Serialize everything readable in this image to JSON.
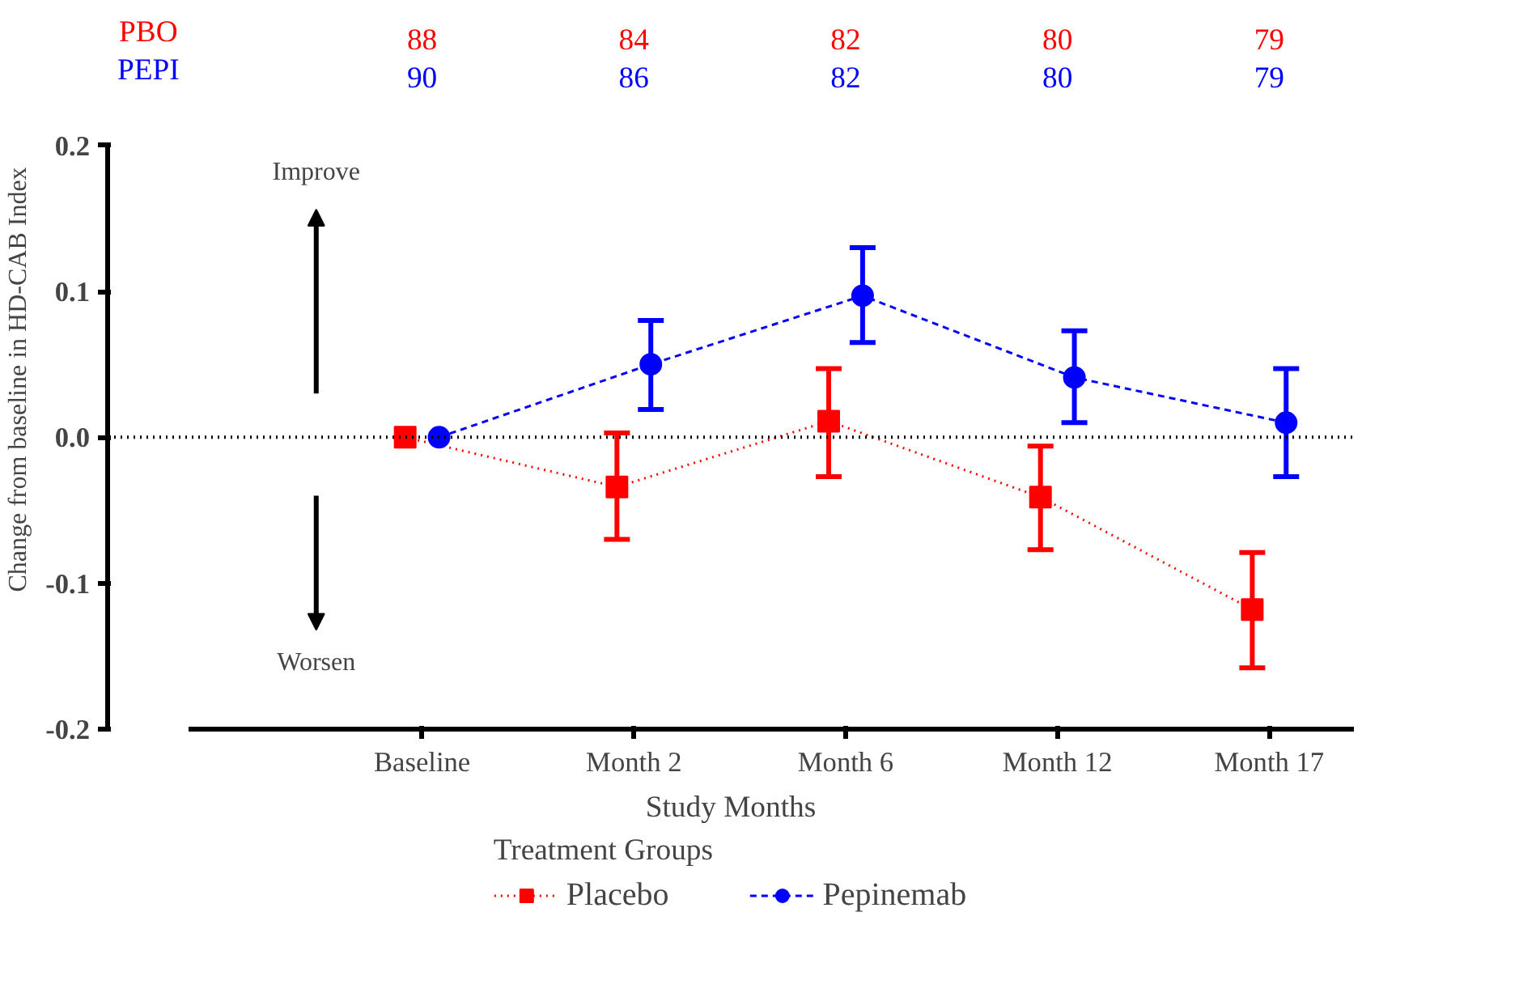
{
  "chart_data": {
    "type": "line",
    "xlabel": "Study Months",
    "ylabel": "Change from baseline in  HD-CAB  Index",
    "legend_title": "Treatment Groups",
    "legend": "bottom",
    "grid": false,
    "categories": [
      "Baseline",
      "Month 2",
      "Month 6",
      "Month 12",
      "Month 17"
    ],
    "ylim": [
      -0.2,
      0.2
    ],
    "yticks": [
      {
        "value": -0.2,
        "label": "-0.2"
      },
      {
        "value": -0.1,
        "label": "-0.1"
      },
      {
        "value": 0,
        "label": "0.0"
      },
      {
        "value": 0.1,
        "label": "0.1"
      },
      {
        "value": 0.2,
        "label": "0.2"
      }
    ],
    "series": [
      {
        "name": "Placebo",
        "color": "#ff0000",
        "marker": "square",
        "line_style": "dotted",
        "values": [
          0,
          -0.034,
          0.011,
          -0.041,
          -0.118
        ],
        "errors": [
          null,
          [
            -0.07,
            0.003
          ],
          [
            -0.027,
            0.047
          ],
          [
            -0.077,
            -0.006
          ],
          [
            -0.158,
            -0.079
          ]
        ]
      },
      {
        "name": "Pepinemab",
        "color": "#0000ff",
        "marker": "circle",
        "line_style": "dashed",
        "values": [
          0,
          0.05,
          0.097,
          0.041,
          0.01
        ],
        "errors": [
          null,
          [
            0.019,
            0.08
          ],
          [
            0.065,
            0.13
          ],
          [
            0.01,
            0.073
          ],
          [
            -0.027,
            0.047
          ]
        ]
      }
    ],
    "ref_lines": [
      {
        "axis": "y",
        "value": 0,
        "color": "#000000",
        "line_style": "dotted"
      }
    ],
    "annotations": [
      "PBO",
      "88",
      "84",
      "82",
      "80",
      "79",
      "PEPI",
      "90",
      "86",
      "82",
      "80",
      "79",
      "Improve",
      "Worsen"
    ]
  }
}
